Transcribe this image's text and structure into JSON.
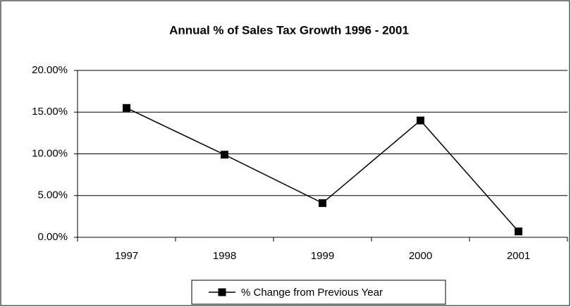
{
  "chart_data": {
    "type": "line",
    "title": "Annual % of Sales Tax Growth 1996 - 2001",
    "categories": [
      "1997",
      "1998",
      "1999",
      "2000",
      "2001"
    ],
    "series": [
      {
        "name": "% Change from Previous Year",
        "color": "#000000",
        "values": [
          15.5,
          9.9,
          4.1,
          14.0,
          0.7
        ]
      }
    ],
    "ylim": [
      0,
      20
    ],
    "yticks": [
      {
        "value": 0,
        "label": "0.00%"
      },
      {
        "value": 5,
        "label": "5.00%"
      },
      {
        "value": 10,
        "label": "10.00%"
      },
      {
        "value": 15,
        "label": "15.00%"
      },
      {
        "value": 20,
        "label": "20.00%"
      }
    ],
    "grid": true,
    "legend": "bottom"
  }
}
